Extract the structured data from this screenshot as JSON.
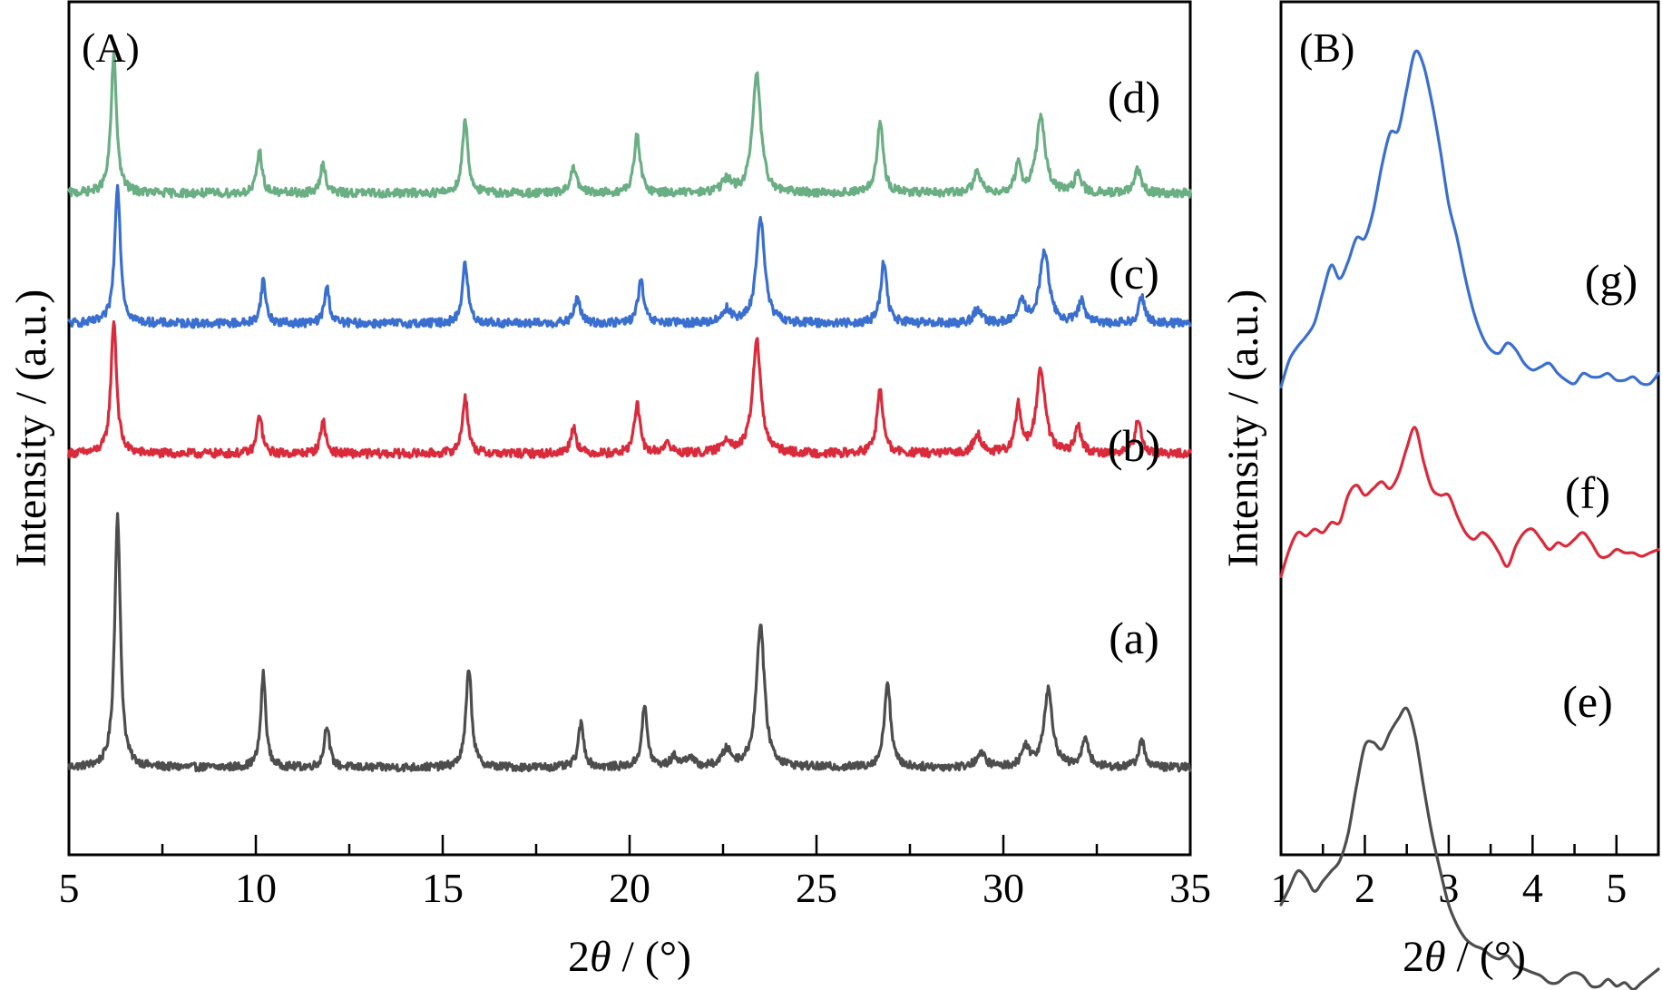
{
  "chart_data": [
    {
      "type": "line",
      "panel_label": "(A)",
      "xlabel_prefix": "2",
      "xlabel_symbol": "θ",
      "xlabel_suffix": " / (°)",
      "ylabel": "Intensity / (a.u.)",
      "xlim": [
        5,
        35
      ],
      "x_ticks": [
        "5",
        "10",
        "15",
        "20",
        "25",
        "30",
        "35"
      ],
      "y_ticks_shown": false,
      "grid": false,
      "series": [
        {
          "label": "(a)",
          "color": "#4d4d4d",
          "baseline": 0.0,
          "noise": 0.012,
          "peaks": [
            {
              "x": 6.3,
              "height": 0.76,
              "width": 0.09
            },
            {
              "x": 10.2,
              "height": 0.28,
              "width": 0.08
            },
            {
              "x": 11.9,
              "height": 0.13,
              "width": 0.08
            },
            {
              "x": 15.7,
              "height": 0.3,
              "width": 0.09
            },
            {
              "x": 18.7,
              "height": 0.13,
              "width": 0.09
            },
            {
              "x": 20.4,
              "height": 0.18,
              "width": 0.09
            },
            {
              "x": 21.2,
              "height": 0.03,
              "width": 0.12
            },
            {
              "x": 21.6,
              "height": 0.03,
              "width": 0.12
            },
            {
              "x": 22.6,
              "height": 0.05,
              "width": 0.15
            },
            {
              "x": 23.5,
              "height": 0.43,
              "width": 0.13
            },
            {
              "x": 26.9,
              "height": 0.26,
              "width": 0.1
            },
            {
              "x": 29.4,
              "height": 0.04,
              "width": 0.15
            },
            {
              "x": 30.6,
              "height": 0.06,
              "width": 0.12
            },
            {
              "x": 31.2,
              "height": 0.23,
              "width": 0.14
            },
            {
              "x": 32.2,
              "height": 0.09,
              "width": 0.1
            },
            {
              "x": 33.7,
              "height": 0.08,
              "width": 0.1
            }
          ]
        },
        {
          "label": "(b)",
          "color": "#d92b3b",
          "baseline": 0.94,
          "noise": 0.013,
          "peaks": [
            {
              "x": 6.2,
              "height": 0.4,
              "width": 0.09
            },
            {
              "x": 10.1,
              "height": 0.12,
              "width": 0.08
            },
            {
              "x": 11.8,
              "height": 0.1,
              "width": 0.08
            },
            {
              "x": 15.6,
              "height": 0.17,
              "width": 0.09
            },
            {
              "x": 18.5,
              "height": 0.08,
              "width": 0.09
            },
            {
              "x": 20.2,
              "height": 0.15,
              "width": 0.09
            },
            {
              "x": 21.0,
              "height": 0.03,
              "width": 0.12
            },
            {
              "x": 22.6,
              "height": 0.04,
              "width": 0.15
            },
            {
              "x": 23.4,
              "height": 0.34,
              "width": 0.13
            },
            {
              "x": 26.7,
              "height": 0.19,
              "width": 0.1
            },
            {
              "x": 29.3,
              "height": 0.06,
              "width": 0.12
            },
            {
              "x": 30.4,
              "height": 0.14,
              "width": 0.09
            },
            {
              "x": 31.0,
              "height": 0.25,
              "width": 0.14
            },
            {
              "x": 32.0,
              "height": 0.08,
              "width": 0.1
            },
            {
              "x": 33.6,
              "height": 0.1,
              "width": 0.1
            }
          ]
        },
        {
          "label": "(c)",
          "color": "#3a6fcf",
          "baseline": 1.33,
          "noise": 0.013,
          "peaks": [
            {
              "x": 6.3,
              "height": 0.42,
              "width": 0.09
            },
            {
              "x": 10.2,
              "height": 0.13,
              "width": 0.08
            },
            {
              "x": 11.9,
              "height": 0.11,
              "width": 0.08
            },
            {
              "x": 15.6,
              "height": 0.18,
              "width": 0.09
            },
            {
              "x": 18.6,
              "height": 0.08,
              "width": 0.09
            },
            {
              "x": 20.3,
              "height": 0.13,
              "width": 0.09
            },
            {
              "x": 22.6,
              "height": 0.04,
              "width": 0.15
            },
            {
              "x": 23.5,
              "height": 0.32,
              "width": 0.13
            },
            {
              "x": 26.8,
              "height": 0.18,
              "width": 0.1
            },
            {
              "x": 29.3,
              "height": 0.04,
              "width": 0.12
            },
            {
              "x": 30.5,
              "height": 0.06,
              "width": 0.12
            },
            {
              "x": 31.1,
              "height": 0.22,
              "width": 0.14
            },
            {
              "x": 32.1,
              "height": 0.07,
              "width": 0.1
            },
            {
              "x": 33.7,
              "height": 0.08,
              "width": 0.1
            }
          ]
        },
        {
          "label": "(d)",
          "color": "#6aae84",
          "baseline": 1.72,
          "noise": 0.013,
          "peaks": [
            {
              "x": 6.2,
              "height": 0.41,
              "width": 0.09
            },
            {
              "x": 10.1,
              "height": 0.13,
              "width": 0.08
            },
            {
              "x": 11.8,
              "height": 0.09,
              "width": 0.08
            },
            {
              "x": 15.6,
              "height": 0.22,
              "width": 0.09
            },
            {
              "x": 18.5,
              "height": 0.08,
              "width": 0.09
            },
            {
              "x": 20.2,
              "height": 0.18,
              "width": 0.09
            },
            {
              "x": 22.6,
              "height": 0.04,
              "width": 0.15
            },
            {
              "x": 23.4,
              "height": 0.36,
              "width": 0.13
            },
            {
              "x": 26.7,
              "height": 0.21,
              "width": 0.1
            },
            {
              "x": 29.3,
              "height": 0.06,
              "width": 0.12
            },
            {
              "x": 30.4,
              "height": 0.09,
              "width": 0.09
            },
            {
              "x": 31.0,
              "height": 0.23,
              "width": 0.14
            },
            {
              "x": 32.0,
              "height": 0.06,
              "width": 0.1
            },
            {
              "x": 33.6,
              "height": 0.07,
              "width": 0.1
            }
          ]
        }
      ]
    },
    {
      "type": "line",
      "panel_label": "(B)",
      "xlabel_prefix": "2",
      "xlabel_symbol": "θ",
      "xlabel_suffix": " / (°)",
      "ylabel": "Intensity / (a.u.)",
      "xlim": [
        1,
        5.5
      ],
      "x_ticks": [
        "1",
        "2",
        "3",
        "4",
        "5"
      ],
      "y_ticks_shown": false,
      "grid": false,
      "series": [
        {
          "label": "(e)",
          "color": "#4d4d4d",
          "points": [
            [
              1.0,
              0.45
            ],
            [
              1.1,
              0.5
            ],
            [
              1.2,
              0.55
            ],
            [
              1.3,
              0.53
            ],
            [
              1.4,
              0.49
            ],
            [
              1.5,
              0.52
            ],
            [
              1.6,
              0.55
            ],
            [
              1.7,
              0.58
            ],
            [
              1.8,
              0.66
            ],
            [
              1.9,
              0.8
            ],
            [
              2.0,
              0.92
            ],
            [
              2.1,
              0.93
            ],
            [
              2.2,
              0.91
            ],
            [
              2.3,
              0.96
            ],
            [
              2.4,
              1.0
            ],
            [
              2.5,
              1.03
            ],
            [
              2.6,
              0.95
            ],
            [
              2.7,
              0.8
            ],
            [
              2.8,
              0.66
            ],
            [
              2.9,
              0.55
            ],
            [
              3.0,
              0.45
            ],
            [
              3.1,
              0.39
            ],
            [
              3.2,
              0.35
            ],
            [
              3.3,
              0.33
            ],
            [
              3.4,
              0.32
            ],
            [
              3.5,
              0.3
            ],
            [
              3.6,
              0.29
            ],
            [
              3.7,
              0.3
            ],
            [
              3.8,
              0.27
            ],
            [
              3.9,
              0.26
            ],
            [
              4.0,
              0.25
            ],
            [
              4.1,
              0.24
            ],
            [
              4.2,
              0.22
            ],
            [
              4.3,
              0.22
            ],
            [
              4.4,
              0.24
            ],
            [
              4.5,
              0.25
            ],
            [
              4.6,
              0.24
            ],
            [
              4.7,
              0.21
            ],
            [
              4.8,
              0.21
            ],
            [
              4.9,
              0.23
            ],
            [
              5.0,
              0.21
            ],
            [
              5.1,
              0.22
            ],
            [
              5.2,
              0.2
            ],
            [
              5.3,
              0.22
            ],
            [
              5.4,
              0.24
            ],
            [
              5.5,
              0.26
            ]
          ]
        },
        {
          "label": "(f)",
          "color": "#d92b3b",
          "points": [
            [
              1.0,
              1.42
            ],
            [
              1.1,
              1.5
            ],
            [
              1.2,
              1.55
            ],
            [
              1.3,
              1.54
            ],
            [
              1.4,
              1.56
            ],
            [
              1.5,
              1.55
            ],
            [
              1.6,
              1.58
            ],
            [
              1.7,
              1.58
            ],
            [
              1.8,
              1.66
            ],
            [
              1.9,
              1.69
            ],
            [
              2.0,
              1.66
            ],
            [
              2.1,
              1.68
            ],
            [
              2.2,
              1.7
            ],
            [
              2.3,
              1.68
            ],
            [
              2.4,
              1.72
            ],
            [
              2.5,
              1.8
            ],
            [
              2.6,
              1.86
            ],
            [
              2.7,
              1.76
            ],
            [
              2.8,
              1.68
            ],
            [
              2.9,
              1.66
            ],
            [
              3.0,
              1.66
            ],
            [
              3.1,
              1.6
            ],
            [
              3.2,
              1.55
            ],
            [
              3.3,
              1.53
            ],
            [
              3.4,
              1.55
            ],
            [
              3.5,
              1.53
            ],
            [
              3.6,
              1.49
            ],
            [
              3.7,
              1.45
            ],
            [
              3.8,
              1.51
            ],
            [
              3.9,
              1.55
            ],
            [
              4.0,
              1.56
            ],
            [
              4.1,
              1.53
            ],
            [
              4.2,
              1.5
            ],
            [
              4.3,
              1.52
            ],
            [
              4.4,
              1.51
            ],
            [
              4.5,
              1.53
            ],
            [
              4.6,
              1.55
            ],
            [
              4.7,
              1.52
            ],
            [
              4.8,
              1.48
            ],
            [
              4.9,
              1.48
            ],
            [
              5.0,
              1.5
            ],
            [
              5.1,
              1.49
            ],
            [
              5.2,
              1.49
            ],
            [
              5.3,
              1.48
            ],
            [
              5.4,
              1.49
            ],
            [
              5.5,
              1.5
            ]
          ]
        },
        {
          "label": "(g)",
          "color": "#3a6fcf",
          "points": [
            [
              1.0,
              1.98
            ],
            [
              1.1,
              2.06
            ],
            [
              1.2,
              2.1
            ],
            [
              1.3,
              2.13
            ],
            [
              1.4,
              2.17
            ],
            [
              1.5,
              2.26
            ],
            [
              1.6,
              2.34
            ],
            [
              1.7,
              2.3
            ],
            [
              1.8,
              2.35
            ],
            [
              1.9,
              2.42
            ],
            [
              2.0,
              2.42
            ],
            [
              2.1,
              2.5
            ],
            [
              2.2,
              2.63
            ],
            [
              2.3,
              2.73
            ],
            [
              2.4,
              2.74
            ],
            [
              2.5,
              2.86
            ],
            [
              2.6,
              2.97
            ],
            [
              2.7,
              2.93
            ],
            [
              2.8,
              2.82
            ],
            [
              2.9,
              2.68
            ],
            [
              3.0,
              2.52
            ],
            [
              3.1,
              2.42
            ],
            [
              3.2,
              2.3
            ],
            [
              3.3,
              2.2
            ],
            [
              3.4,
              2.13
            ],
            [
              3.5,
              2.09
            ],
            [
              3.6,
              2.08
            ],
            [
              3.7,
              2.11
            ],
            [
              3.8,
              2.09
            ],
            [
              3.9,
              2.05
            ],
            [
              4.0,
              2.03
            ],
            [
              4.1,
              2.04
            ],
            [
              4.2,
              2.05
            ],
            [
              4.3,
              2.02
            ],
            [
              4.4,
              2.0
            ],
            [
              4.5,
              1.99
            ],
            [
              4.6,
              2.02
            ],
            [
              4.7,
              2.01
            ],
            [
              4.8,
              2.01
            ],
            [
              4.9,
              2.02
            ],
            [
              5.0,
              2.0
            ],
            [
              5.1,
              2.0
            ],
            [
              5.2,
              2.01
            ],
            [
              5.3,
              1.99
            ],
            [
              5.4,
              1.99
            ],
            [
              5.5,
              2.02
            ]
          ]
        }
      ]
    }
  ]
}
